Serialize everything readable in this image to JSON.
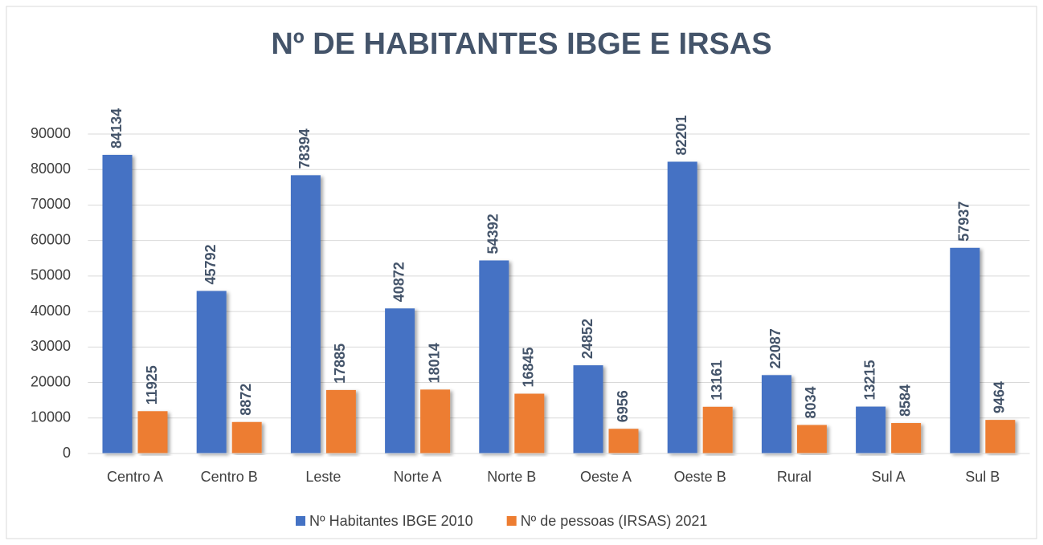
{
  "chart_data": {
    "type": "bar",
    "title": "Nº DE HABITANTES IBGE E IRSAS",
    "categories": [
      "Centro A",
      "Centro B",
      "Leste",
      "Norte A",
      "Norte B",
      "Oeste A",
      "Oeste B",
      "Rural",
      "Sul A",
      "Sul B"
    ],
    "series": [
      {
        "name": "Nº Habitantes IBGE 2010",
        "color": "#4472c4",
        "values": [
          84134,
          45792,
          78394,
          40872,
          54392,
          24852,
          82201,
          22087,
          13215,
          57937
        ]
      },
      {
        "name": "Nº de pessoas (IRSAS) 2021",
        "color": "#ed7d31",
        "values": [
          11925,
          8872,
          17885,
          18014,
          16845,
          6956,
          13161,
          8034,
          8584,
          9464
        ]
      }
    ],
    "ylim": [
      0,
      90000
    ],
    "yticks": [
      0,
      10000,
      20000,
      30000,
      40000,
      50000,
      60000,
      70000,
      80000,
      90000
    ],
    "grid": true,
    "legend": "bottom"
  }
}
